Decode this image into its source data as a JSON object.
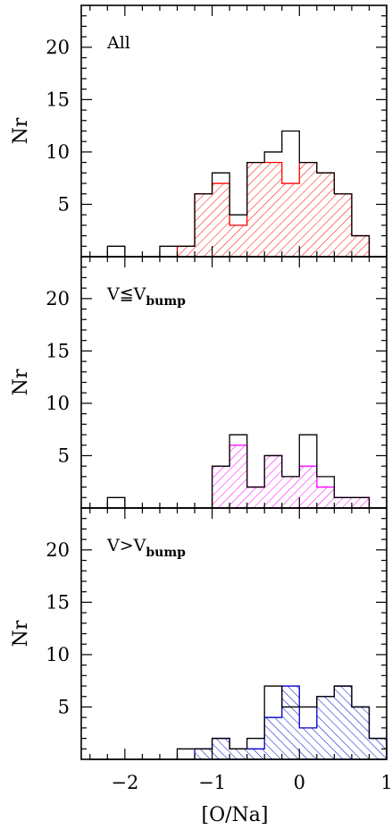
{
  "chart_data": [
    {
      "type": "histogram",
      "panel_label": {
        "main": "All",
        "sub": ""
      },
      "ylabel": "Nr",
      "xlabel": "",
      "xlim": [
        -2.5,
        1.0
      ],
      "ylim": [
        0,
        24
      ],
      "bin_edges": [
        -2.4,
        -2.2,
        -2.0,
        -1.8,
        -1.6,
        -1.4,
        -1.2,
        -1.0,
        -0.8,
        -0.6,
        -0.4,
        -0.2,
        0.0,
        0.2,
        0.4,
        0.6,
        0.8,
        1.0
      ],
      "series": [
        {
          "style": "outline",
          "color": "#000000",
          "values": [
            0,
            1,
            0,
            0,
            1,
            1,
            6,
            8,
            4,
            9,
            10,
            12,
            9,
            8,
            6,
            2,
            0
          ]
        },
        {
          "style": "hatched",
          "color": "#ff0000",
          "values": [
            0,
            0,
            0,
            0,
            0,
            1,
            6,
            7,
            3,
            9,
            9,
            7,
            9,
            8,
            6,
            2,
            0
          ]
        }
      ]
    },
    {
      "type": "histogram",
      "panel_label": {
        "main": "V≦V",
        "sub": "bump"
      },
      "ylabel": "Nr",
      "xlabel": "",
      "xlim": [
        -2.5,
        1.0
      ],
      "ylim": [
        0,
        24
      ],
      "bin_edges": [
        -2.4,
        -2.2,
        -2.0,
        -1.8,
        -1.6,
        -1.4,
        -1.2,
        -1.0,
        -0.8,
        -0.6,
        -0.4,
        -0.2,
        0.0,
        0.2,
        0.4,
        0.6,
        0.8,
        1.0
      ],
      "series": [
        {
          "style": "outline",
          "color": "#000000",
          "values": [
            0,
            1,
            0,
            0,
            0,
            0,
            0,
            4,
            7,
            2,
            5,
            3,
            7,
            3,
            1,
            1,
            0
          ]
        },
        {
          "style": "hatched",
          "color": "#ff00ff",
          "values": [
            0,
            0,
            0,
            0,
            0,
            0,
            0,
            4,
            6,
            2,
            5,
            3,
            4,
            2,
            1,
            1,
            0
          ]
        }
      ]
    },
    {
      "type": "histogram",
      "panel_label": {
        "main": "V>V",
        "sub": "bump"
      },
      "ylabel": "Nr",
      "xlabel": "[O/Na]",
      "xlim": [
        -2.5,
        1.0
      ],
      "ylim": [
        0,
        24
      ],
      "bin_edges": [
        -2.4,
        -2.2,
        -2.0,
        -1.8,
        -1.6,
        -1.4,
        -1.2,
        -1.0,
        -0.8,
        -0.6,
        -0.4,
        -0.2,
        0.0,
        0.2,
        0.4,
        0.6,
        0.8,
        1.0
      ],
      "series": [
        {
          "style": "outline",
          "color": "#000000",
          "values": [
            0,
            0,
            0,
            0,
            0,
            1,
            1,
            2,
            1,
            2,
            7,
            5,
            5,
            6,
            7,
            5,
            2
          ]
        },
        {
          "style": "hatched",
          "color": "#0000cc",
          "values": [
            0,
            0,
            0,
            0,
            0,
            0,
            1,
            2,
            1,
            1,
            4,
            7,
            3,
            6,
            7,
            5,
            2
          ]
        }
      ]
    }
  ],
  "axes": {
    "y_ticks": [
      "5",
      "10",
      "15",
      "20"
    ],
    "y_tick_values": [
      5,
      10,
      15,
      20
    ],
    "x_ticks": [
      "−2",
      "−1",
      "0",
      "1"
    ],
    "x_tick_values": [
      -2,
      -1,
      0,
      1
    ]
  }
}
